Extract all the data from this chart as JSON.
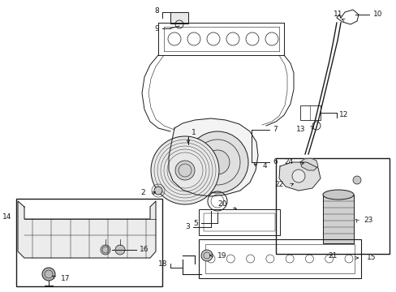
{
  "bg_color": "#ffffff",
  "line_color": "#1a1a1a",
  "fig_width": 4.89,
  "fig_height": 3.6,
  "dpi": 100,
  "fs": 6.5,
  "lw": 0.7
}
